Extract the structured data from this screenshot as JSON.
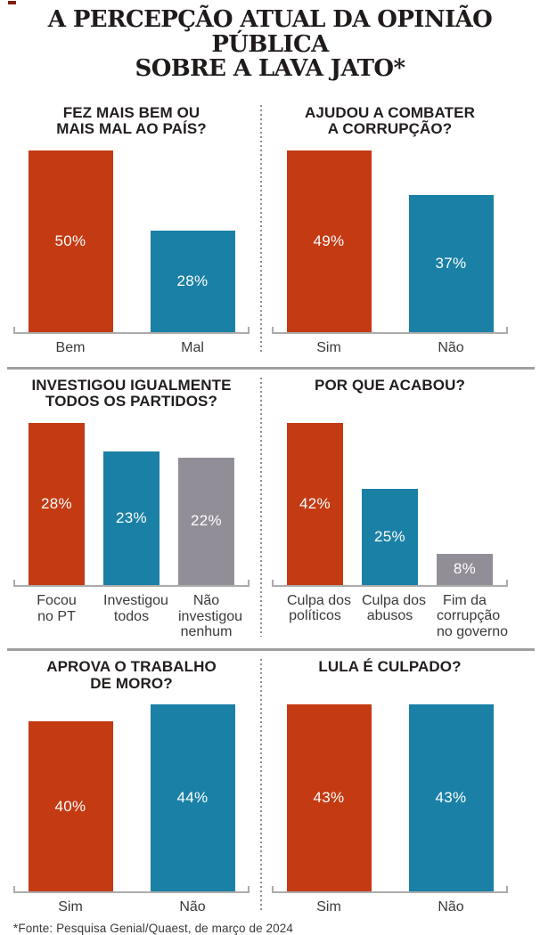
{
  "header": {
    "title_line1": "A PERCEPÇÃO ATUAL DA OPINIÃO PÚBLICA",
    "title_line2": "SOBRE A LAVA JATO*"
  },
  "footer": {
    "source_note": "*Fonte: Pesquisa Genial/Quaest, de março de 2024"
  },
  "colors": {
    "red": "#C43A12",
    "blue": "#1A80A6",
    "gray": "#928E97",
    "axis": "#ABABAB",
    "row_divider": "#A0A0A0",
    "dotted_divider": "#8F8F8F",
    "title_text": "#1F1B1A",
    "label_text": "#3A3A3A",
    "value_text": "#FFFFFF"
  },
  "chart_data": [
    {
      "type": "bar",
      "title": "FEZ MAIS BEM OU MAIS MAL AO PAÍS?",
      "title_lines": [
        "FEZ MAIS BEM OU",
        "MAIS MAL AO PAÍS?"
      ],
      "categories": [
        "Bem",
        "Mal"
      ],
      "category_lines": [
        [
          "Bem"
        ],
        [
          "Mal"
        ]
      ],
      "values": [
        50,
        28
      ],
      "display_values": [
        "50%",
        "28%"
      ],
      "unit": "%",
      "bar_colors": [
        "#C43A12",
        "#1A80A6"
      ]
    },
    {
      "type": "bar",
      "title": "AJUDOU A COMBATER A CORRUPÇÃO?",
      "title_lines": [
        "AJUDOU A COMBATER",
        "A CORRUPÇÃO?"
      ],
      "categories": [
        "Sim",
        "Não"
      ],
      "category_lines": [
        [
          "Sim"
        ],
        [
          "Não"
        ]
      ],
      "values": [
        49,
        37
      ],
      "display_values": [
        "49%",
        "37%"
      ],
      "unit": "%",
      "bar_colors": [
        "#C43A12",
        "#1A80A6"
      ]
    },
    {
      "type": "bar",
      "title": "INVESTIGOU IGUALMENTE TODOS OS PARTIDOS?",
      "title_lines": [
        "INVESTIGOU IGUALMENTE",
        "TODOS OS PARTIDOS?"
      ],
      "categories": [
        "Focou no PT",
        "Investigou todos",
        "Não investigou nenhum"
      ],
      "category_lines": [
        [
          "Focou",
          "no PT"
        ],
        [
          "Investigou",
          "todos"
        ],
        [
          "Não",
          "investigou",
          "nenhum"
        ]
      ],
      "values": [
        28,
        23,
        22
      ],
      "display_values": [
        "28%",
        "23%",
        "22%"
      ],
      "unit": "%",
      "bar_colors": [
        "#C43A12",
        "#1A80A6",
        "#928E97"
      ]
    },
    {
      "type": "bar",
      "title": "POR QUE ACABOU?",
      "title_lines": [
        "POR QUE ACABOU?"
      ],
      "categories": [
        "Culpa dos políticos",
        "Culpa dos abusos",
        "Fim da corrupção no governo"
      ],
      "category_lines": [
        [
          "Culpa dos",
          "políticos"
        ],
        [
          "Culpa dos",
          "abusos"
        ],
        [
          "Fim da",
          "corrupção",
          "no governo"
        ]
      ],
      "values": [
        42,
        25,
        8
      ],
      "display_values": [
        "42%",
        "25%",
        "8%"
      ],
      "unit": "%",
      "bar_colors": [
        "#C43A12",
        "#1A80A6",
        "#928E97"
      ]
    },
    {
      "type": "bar",
      "title": "APROVA O TRABALHO DE MORO?",
      "title_lines": [
        "APROVA O TRABALHO",
        "DE MORO?"
      ],
      "categories": [
        "Sim",
        "Não"
      ],
      "category_lines": [
        [
          "Sim"
        ],
        [
          "Não"
        ]
      ],
      "values": [
        40,
        44
      ],
      "display_values": [
        "40%",
        "44%"
      ],
      "unit": "%",
      "bar_colors": [
        "#C43A12",
        "#1A80A6"
      ]
    },
    {
      "type": "bar",
      "title": "LULA É CULPADO?",
      "title_lines": [
        "LULA É CULPADO?"
      ],
      "categories": [
        "Sim",
        "Não"
      ],
      "category_lines": [
        [
          "Sim"
        ],
        [
          "Não"
        ]
      ],
      "values": [
        43,
        43
      ],
      "display_values": [
        "43%",
        "43%"
      ],
      "unit": "%",
      "bar_colors": [
        "#C43A12",
        "#1A80A6"
      ]
    }
  ]
}
